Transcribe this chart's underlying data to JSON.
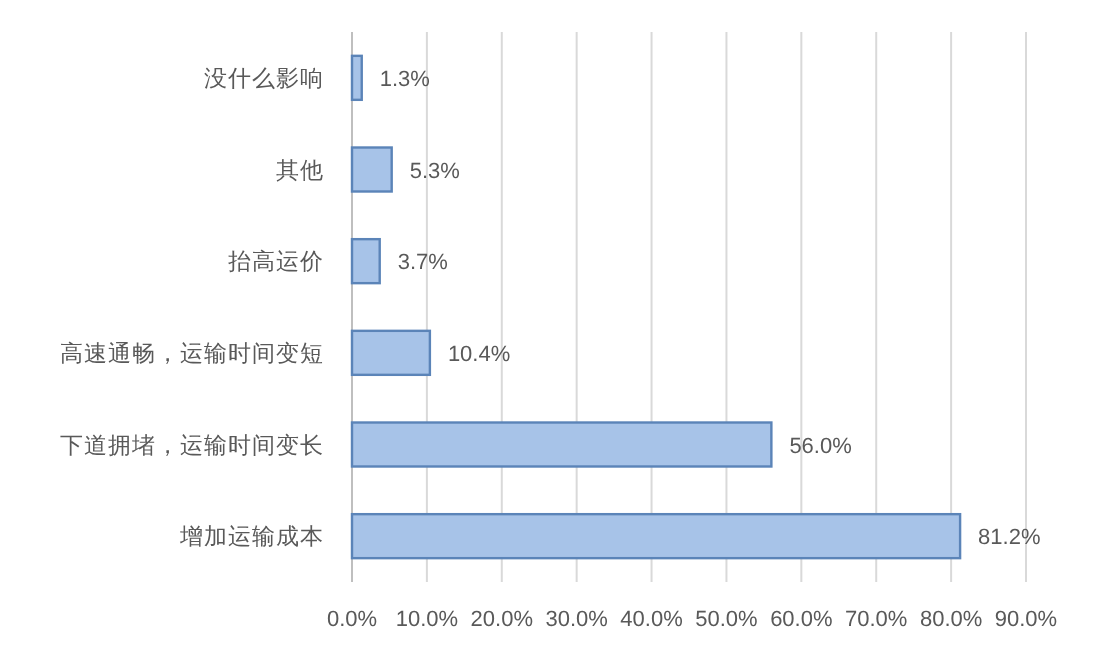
{
  "chart_data": {
    "type": "bar",
    "orientation": "horizontal",
    "categories": [
      "没什么影响",
      "其他",
      "抬高运价",
      "高速通畅，运输时间变短",
      "下道拥堵，运输时间变长",
      "增加运输成本"
    ],
    "values": [
      1.3,
      5.3,
      3.7,
      10.4,
      56.0,
      81.2
    ],
    "value_labels": [
      "1.3%",
      "5.3%",
      "3.7%",
      "10.4%",
      "56.0%",
      "81.2%"
    ],
    "color": "#a7c3e8",
    "xlim": [
      0,
      90
    ],
    "xticks": [
      {
        "value": 0,
        "label": "0.0%"
      },
      {
        "value": 10,
        "label": "10.0%"
      },
      {
        "value": 20,
        "label": "20.0%"
      },
      {
        "value": 30,
        "label": "30.0%"
      },
      {
        "value": 40,
        "label": "40.0%"
      },
      {
        "value": 50,
        "label": "50.0%"
      },
      {
        "value": 60,
        "label": "60.0%"
      },
      {
        "value": 70,
        "label": "70.0%"
      },
      {
        "value": 80,
        "label": "80.0%"
      },
      {
        "value": 90,
        "label": "90.0%"
      }
    ],
    "grid": "x"
  }
}
